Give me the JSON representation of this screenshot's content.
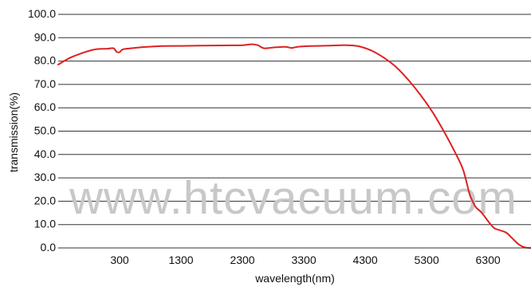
{
  "chart_data": {
    "type": "line",
    "xlabel": "wavelength(nm)",
    "ylabel": "transmission(%)",
    "ylim": [
      0,
      100
    ],
    "xlim": [
      -700,
      7000
    ],
    "grid": "horizontal",
    "x_ticks": [
      300,
      1300,
      2300,
      3300,
      4300,
      5300,
      6300
    ],
    "x_tick_labels": [
      "300",
      "1300",
      "2300",
      "3300",
      "4300",
      "5300",
      "6300"
    ],
    "y_ticks": [
      0,
      10,
      20,
      30,
      40,
      50,
      60,
      70,
      80,
      90,
      100
    ],
    "y_tick_labels": [
      "0.0",
      "10.0",
      "20.0",
      "30.0",
      "40.0",
      "50.0",
      "60.0",
      "70.0",
      "80.0",
      "90.0",
      "100.0"
    ],
    "series_color": "#e02020",
    "series": [
      {
        "x": [
          -700,
          -500,
          -300,
          -100,
          100,
          200,
          250,
          300,
          350,
          500,
          700,
          1000,
          1300,
          1600,
          2000,
          2300,
          2450,
          2550,
          2650,
          2800,
          3000,
          3100,
          3200,
          3400,
          3700,
          4000,
          4200,
          4400,
          4600,
          4800,
          5000,
          5200,
          5400,
          5600,
          5800,
          5900,
          6000,
          6050,
          6100,
          6200,
          6300,
          6400,
          6500,
          6600,
          6700,
          6800,
          6900,
          7000
        ],
        "y": [
          78.5,
          81.5,
          83.5,
          85,
          85.3,
          85.5,
          84,
          83.8,
          85,
          85.5,
          86,
          86.4,
          86.5,
          86.6,
          86.7,
          86.8,
          87.2,
          86.8,
          85.5,
          85.8,
          86.1,
          85.6,
          86.1,
          86.4,
          86.6,
          86.8,
          86.3,
          84.5,
          81.5,
          77.5,
          72,
          65.5,
          58,
          49,
          39,
          33,
          23,
          20,
          17.5,
          15,
          11.5,
          8.5,
          7.5,
          6.5,
          4,
          1.5,
          0.2,
          0
        ]
      }
    ]
  },
  "watermark_text": "www.htcvacuum.com"
}
